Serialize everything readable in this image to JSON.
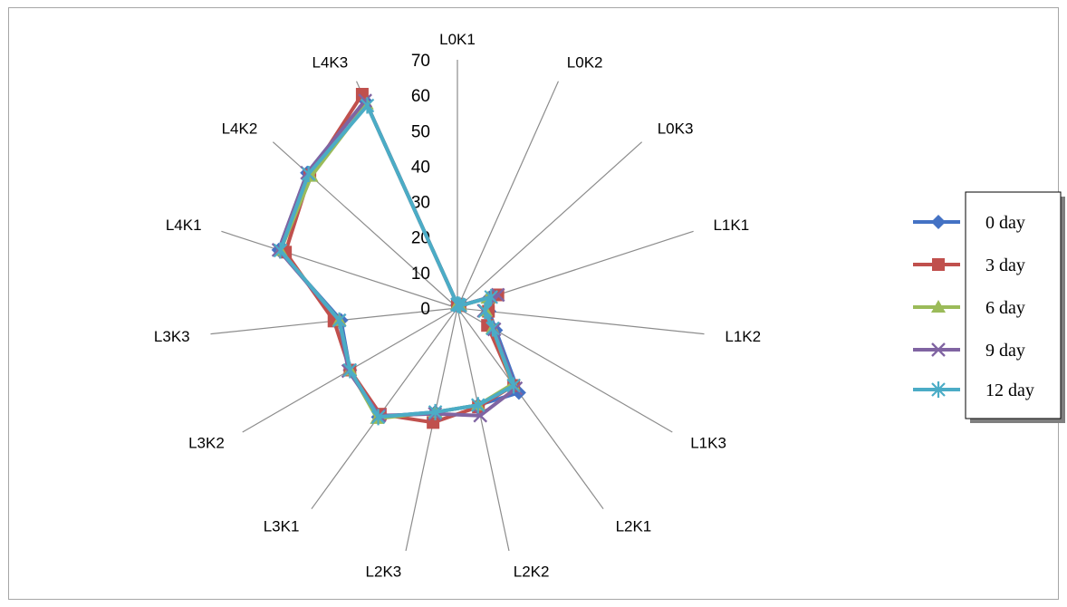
{
  "chart_data": {
    "type": "radar",
    "title": "",
    "categories": [
      "L0K1",
      "L0K2",
      "L0K3",
      "L1K1",
      "L1K2",
      "L1K3",
      "L2K1",
      "L2K2",
      "L2K3",
      "L3K1",
      "L3K2",
      "L3K3",
      "L4K1",
      "L4K2",
      "L4K3"
    ],
    "rlim": [
      0,
      70
    ],
    "ticks": [
      0,
      10,
      20,
      30,
      40,
      50,
      60,
      70
    ],
    "grid": "spokes-only",
    "legend_position": "right",
    "series": [
      {
        "name": "0 day",
        "color": "#4472c4",
        "marker": "diamond",
        "values": [
          1,
          1,
          1,
          9.5,
          9,
          12.5,
          29.5,
          28,
          30,
          38,
          35,
          33,
          53,
          57,
          64
        ]
      },
      {
        "name": "3 day",
        "color": "#c0504d",
        "marker": "square",
        "values": [
          1,
          1,
          1,
          12,
          8.8,
          9.8,
          27,
          28.5,
          33,
          37,
          35,
          35,
          51,
          56,
          66
        ]
      },
      {
        "name": "6 day",
        "color": "#9bbb59",
        "marker": "triangle",
        "values": [
          1,
          1,
          1,
          9,
          8,
          11.5,
          26.5,
          28,
          30,
          38.5,
          35,
          33.5,
          52.5,
          55.5,
          63
        ]
      },
      {
        "name": "9 day",
        "color": "#8064a2",
        "marker": "x",
        "values": [
          1,
          1,
          1,
          12,
          7.5,
          12,
          28,
          31,
          30.5,
          37.5,
          35.5,
          33.5,
          53,
          57,
          64
        ]
      },
      {
        "name": "12 day",
        "color": "#4bacc6",
        "marker": "star",
        "values": [
          1,
          1,
          1,
          10,
          7.8,
          11.5,
          27,
          28,
          30,
          38,
          35,
          33.5,
          52.5,
          56.5,
          62.5
        ]
      }
    ]
  }
}
